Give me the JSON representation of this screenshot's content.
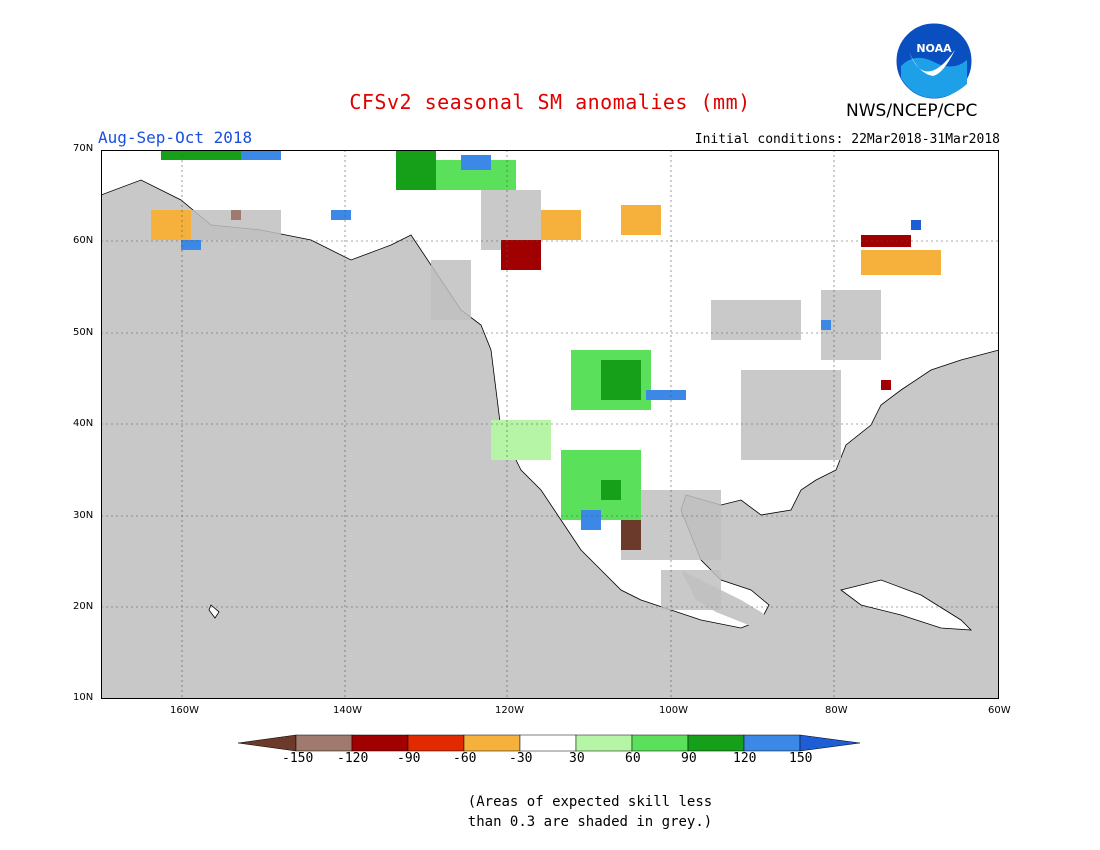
{
  "title": "CFSv2 seasonal SM anomalies (mm)",
  "season": "Aug-Sep-Oct 2018",
  "initial_conditions": "Initial conditions: 22Mar2018-31Mar2018",
  "agency": "NWS/NCEP/CPC",
  "logo_text": "NOAA",
  "note_line1": "(Areas of expected skill less",
  "note_line2": "than 0.3 are shaded in grey.)",
  "map": {
    "lat_labels": [
      "70N",
      "60N",
      "50N",
      "40N",
      "30N",
      "20N",
      "10N"
    ],
    "lon_labels": [
      "160W",
      "140W",
      "120W",
      "100W",
      "80W",
      "60W"
    ],
    "lon_range": [
      -171,
      -60
    ],
    "lat_range": [
      10,
      70
    ],
    "ocean_color": "#c8c8c8",
    "land_color": "#ffffff",
    "skill_mask_color": "#c0c0c0"
  },
  "colorbar": {
    "labels": [
      "-150",
      "-120",
      "-90",
      "-60",
      "-30",
      "30",
      "60",
      "90",
      "120",
      "150"
    ],
    "colors": [
      "#6b3a2a",
      "#a07a6e",
      "#a00000",
      "#e12a00",
      "#f5b13c",
      "#ffffff",
      "#b6f5a6",
      "#5ae05a",
      "#16a01a",
      "#3c88e6",
      "#1d5ed6"
    ]
  }
}
